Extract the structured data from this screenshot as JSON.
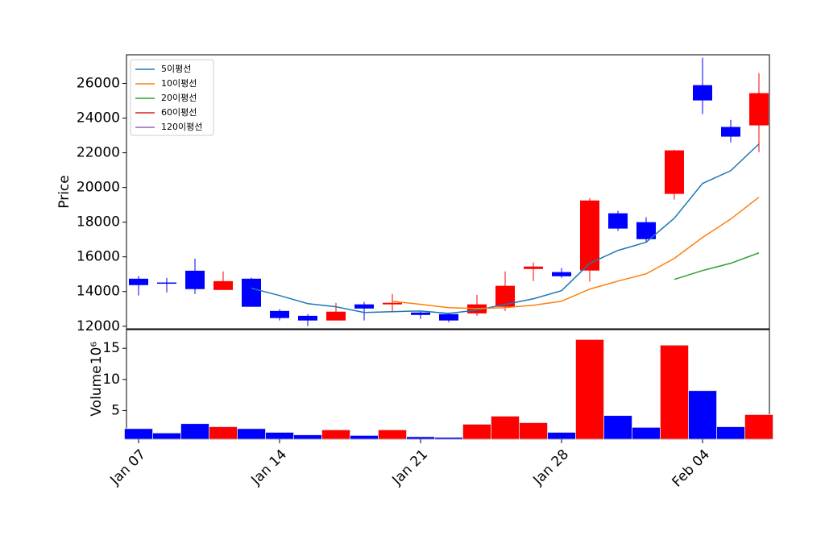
{
  "chart_data": [
    {
      "type": "candlestick",
      "ylabel": "Price",
      "ylim": [
        11850,
        27650
      ],
      "yticks": [
        12000,
        14000,
        16000,
        18000,
        20000,
        22000,
        24000,
        26000
      ],
      "up_color": "#ff0000",
      "down_color": "#0000ff",
      "legend": "upper left",
      "open": [
        14740,
        14520,
        15200,
        14090,
        14740,
        12880,
        12600,
        12330,
        13260,
        13260,
        12790,
        12700,
        12740,
        13120,
        15300,
        15120,
        15210,
        18510,
        18000,
        19630,
        25900,
        23490,
        23580
      ],
      "high": [
        14900,
        14790,
        15900,
        15160,
        14800,
        12980,
        12700,
        13350,
        13400,
        13860,
        12880,
        12790,
        13810,
        15160,
        15670,
        15350,
        19390,
        18650,
        18280,
        22180,
        27480,
        23900,
        26600
      ],
      "low": [
        13770,
        13950,
        13860,
        14090,
        13120,
        12330,
        12000,
        12330,
        12330,
        12790,
        12420,
        12230,
        12600,
        12880,
        14600,
        14790,
        14560,
        17490,
        16840,
        19300,
        24230,
        22600,
        22040
      ],
      "close": [
        14370,
        14450,
        14140,
        14600,
        13120,
        12470,
        12330,
        12840,
        13020,
        13350,
        12650,
        12330,
        13260,
        14330,
        15440,
        14880,
        19250,
        17630,
        17020,
        22140,
        25020,
        22930,
        25440
      ],
      "series": [
        {
          "name": "5이평선",
          "color": "#1f77b4",
          "values": [
            null,
            null,
            null,
            null,
            14190,
            13770,
            13300,
            13120,
            12790,
            12840,
            12880,
            12740,
            12930,
            13260,
            13580,
            14050,
            15630,
            16370,
            16840,
            18230,
            20230,
            20970,
            22510
          ]
        },
        {
          "name": "10이평선",
          "color": "#ff7f0e",
          "values": [
            null,
            null,
            null,
            null,
            null,
            null,
            null,
            null,
            null,
            13440,
            13260,
            13070,
            13020,
            13070,
            13210,
            13440,
            14140,
            14600,
            15020,
            15910,
            17120,
            18180,
            19440
          ]
        },
        {
          "name": "20이평선",
          "color": "#2ca02c",
          "values": [
            null,
            null,
            null,
            null,
            null,
            null,
            null,
            null,
            null,
            null,
            null,
            null,
            null,
            null,
            null,
            null,
            null,
            null,
            null,
            14700,
            15210,
            15630,
            16230
          ]
        },
        {
          "name": "60이평선",
          "color": "#d62728",
          "values": [
            null,
            null,
            null,
            null,
            null,
            null,
            null,
            null,
            null,
            null,
            null,
            null,
            null,
            null,
            null,
            null,
            null,
            null,
            null,
            null,
            null,
            null,
            null
          ]
        },
        {
          "name": "120이평선",
          "color": "#9467bd",
          "values": [
            null,
            null,
            null,
            null,
            null,
            null,
            null,
            null,
            null,
            null,
            null,
            null,
            null,
            null,
            null,
            null,
            null,
            null,
            null,
            null,
            null,
            null,
            null
          ]
        }
      ]
    },
    {
      "type": "bar",
      "ylabel": "Volume",
      "offset_label": "10⁶",
      "ylim": [
        0.4,
        18
      ],
      "yticks": [
        5,
        10,
        15
      ],
      "categories": [
        "Jan 07",
        null,
        null,
        null,
        null,
        "Jan 14",
        null,
        null,
        null,
        null,
        "Jan 21",
        null,
        null,
        null,
        null,
        "Jan 28",
        null,
        null,
        null,
        null,
        "Feb 04",
        null,
        null
      ],
      "values": [
        2.1,
        1.4,
        2.9,
        2.4,
        2.1,
        1.5,
        1.1,
        1.9,
        1.0,
        1.9,
        0.8,
        0.7,
        2.8,
        4.1,
        3.05,
        1.5,
        16.4,
        4.2,
        2.3,
        15.5,
        8.2,
        2.4,
        4.35
      ],
      "colors": [
        "#0000ff",
        "#0000ff",
        "#0000ff",
        "#ff0000",
        "#0000ff",
        "#0000ff",
        "#0000ff",
        "#ff0000",
        "#0000ff",
        "#ff0000",
        "#0000ff",
        "#0000ff",
        "#ff0000",
        "#ff0000",
        "#ff0000",
        "#0000ff",
        "#ff0000",
        "#0000ff",
        "#0000ff",
        "#ff0000",
        "#0000ff",
        "#0000ff",
        "#ff0000"
      ]
    }
  ]
}
